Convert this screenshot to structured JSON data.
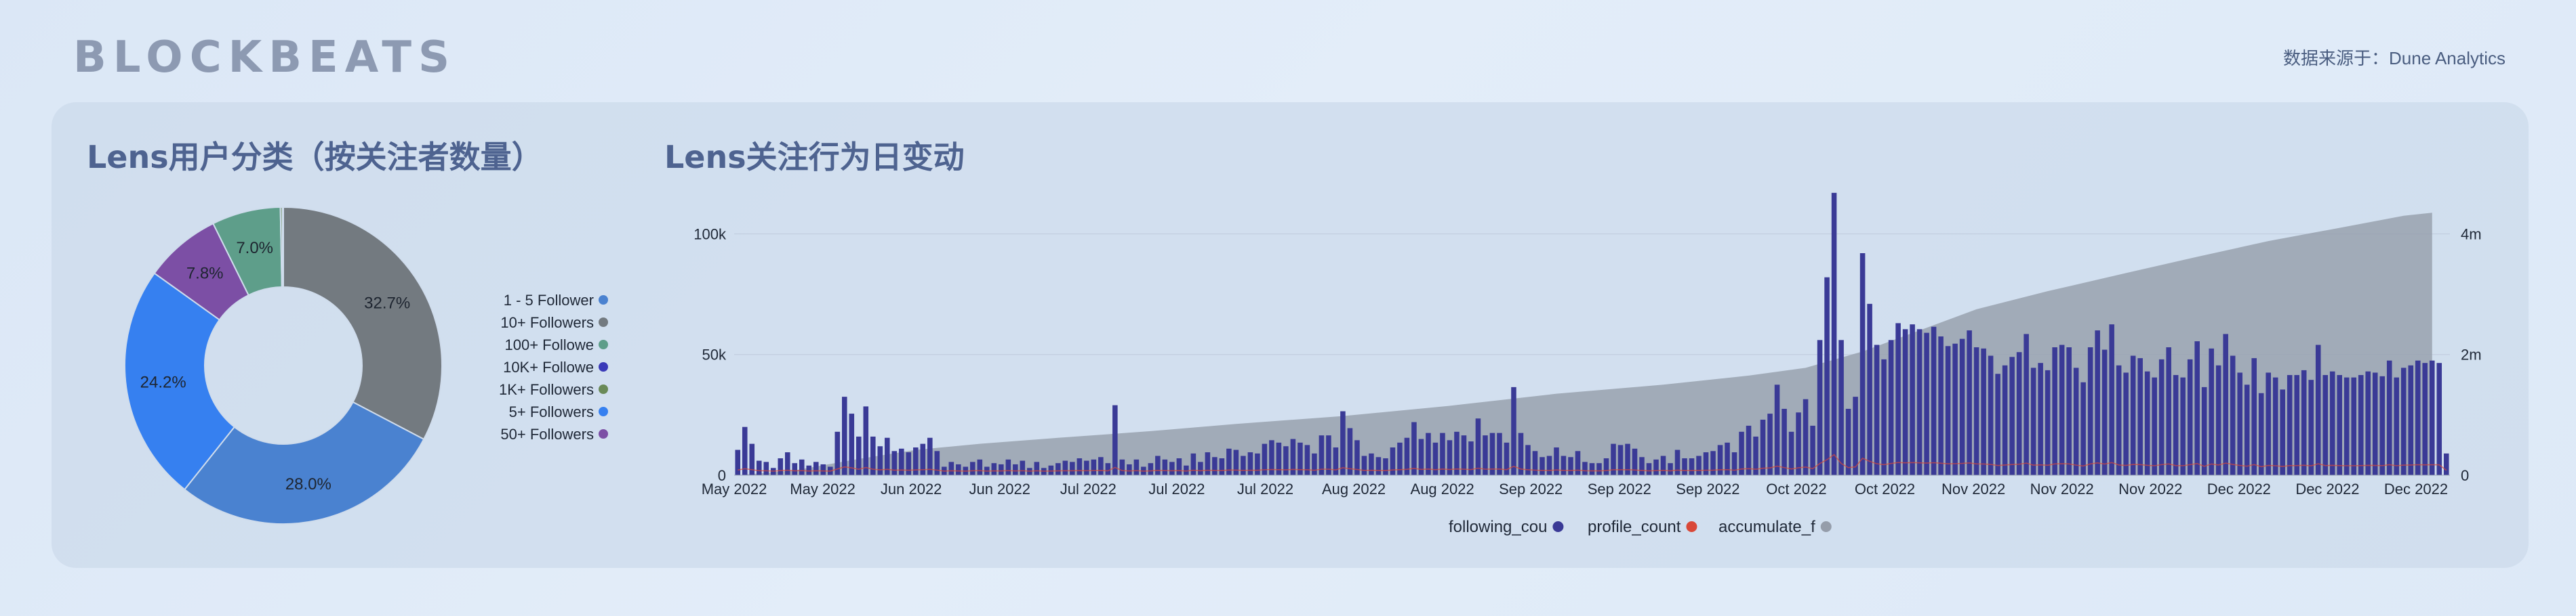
{
  "brand": {
    "logo_text": "BLOCKBEATS",
    "source_label": "数据来源于：Dune Analytics"
  },
  "chart_data": [
    {
      "type": "pie",
      "variant": "donut",
      "title": "Lens用户分类（按关注者数量）",
      "legend_position": "right",
      "slices": [
        {
          "label": "10+ Followers",
          "value": 32.7,
          "color": "#737a80"
        },
        {
          "label": "1 - 5 Follower",
          "value": 28.0,
          "color": "#4a82d0"
        },
        {
          "label": "5+ Followers",
          "value": 24.2,
          "color": "#3680f0"
        },
        {
          "label": "50+ Followers",
          "value": 7.8,
          "color": "#7c4fa5"
        },
        {
          "label": "100+ Followe",
          "value": 7.0,
          "color": "#5e9e8a"
        },
        {
          "label": "1K+ Followers",
          "value": 0.2,
          "color": "#6a8a58"
        },
        {
          "label": "10K+ Followe",
          "value": 0.1,
          "color": "#3a3ab8"
        }
      ],
      "legend_order": [
        "1 - 5 Follower",
        "10+ Followers",
        "100+ Followe",
        "10K+ Followe",
        "1K+ Followers",
        "5+ Followers",
        "50+ Followers"
      ],
      "display_labels": [
        "32.7%",
        "28.0%",
        "24.2%",
        "7.8%",
        "7.0%"
      ]
    },
    {
      "type": "bar",
      "title": "Lens关注行为日变动",
      "x_ticks": [
        "May 2022",
        "May 2022",
        "Jun 2022",
        "Jun 2022",
        "Jul 2022",
        "Jul 2022",
        "Jul 2022",
        "Aug 2022",
        "Aug 2022",
        "Sep 2022",
        "Sep 2022",
        "Sep 2022",
        "Oct 2022",
        "Oct 2022",
        "Nov 2022",
        "Nov 2022",
        "Nov 2022",
        "Dec 2022",
        "Dec 2022",
        "Dec 2022"
      ],
      "ylim_left": [
        0,
        115000
      ],
      "ylim_right": [
        0,
        4600000
      ],
      "y_ticks_left": [
        "0",
        "50k",
        "100k"
      ],
      "y_ticks_right": [
        "0",
        "2m",
        "4m"
      ],
      "legend_position": "bottom",
      "grid": true,
      "series": [
        {
          "name": "following_cou",
          "type": "bar",
          "axis": "left",
          "color": "#3a3a96",
          "values": [
            10500,
            20000,
            13000,
            6000,
            5500,
            3000,
            7000,
            9500,
            5000,
            6500,
            4000,
            5500,
            4500,
            3500,
            18000,
            32500,
            25500,
            16000,
            28500,
            16000,
            12000,
            15500,
            10000,
            11000,
            9500,
            11500,
            13000,
            15500,
            10000,
            3500,
            5500,
            4500,
            3500,
            5500,
            6500,
            3500,
            5000,
            4500,
            6500,
            4500,
            6000,
            3000,
            5500,
            3000,
            4000,
            5000,
            6000,
            5500,
            7000,
            6000,
            6500,
            7500,
            5000,
            29000,
            6500,
            4500,
            6500,
            3500,
            5000,
            8000,
            6500,
            5500,
            7000,
            4000,
            9000,
            5500,
            9500,
            7500,
            7000,
            11000,
            10500,
            8000,
            9500,
            9000,
            13000,
            14500,
            13500,
            12000,
            15000,
            13500,
            12500,
            9000,
            16500,
            16500,
            11500,
            26500,
            19500,
            14500,
            8000,
            9000,
            7500,
            7000,
            11500,
            13500,
            15500,
            22000,
            15000,
            17500,
            13500,
            17500,
            14500,
            18000,
            16500,
            14000,
            23500,
            16500,
            17500,
            17500,
            13500,
            36500,
            17500,
            12500,
            10000,
            7500,
            8000,
            11500,
            8000,
            7500,
            10000,
            5500,
            5000,
            5000,
            7000,
            13000,
            12500,
            13000,
            11000,
            7500,
            5000,
            6500,
            8000,
            5000,
            10500,
            7000,
            7000,
            8000,
            9500,
            10000,
            12500,
            13500,
            9500,
            18000,
            20500,
            16000,
            23000,
            25500,
            37500,
            27500,
            18000,
            26000,
            31500,
            20500,
            56000,
            82000,
            117000,
            56000,
            27500,
            32500,
            92000,
            71000,
            54000,
            48000,
            56000,
            63000,
            60500,
            62500,
            60500,
            59000,
            61500,
            57500,
            53500,
            54500,
            56500,
            60000,
            53000,
            52500,
            49500,
            42000,
            45500,
            49000,
            51000,
            58500,
            44500,
            46500,
            43500,
            53000,
            54000,
            53000,
            44500,
            38500,
            53000,
            60000,
            52000,
            62500,
            45500,
            42500,
            49500,
            48500,
            43000,
            40500,
            48000,
            53000,
            41500,
            40500,
            48000,
            55500,
            36500,
            52500,
            45500,
            58500,
            49500,
            42500,
            37500,
            48500,
            34000,
            42500,
            40500,
            35500,
            41500,
            41500,
            43500,
            39500,
            54000,
            41500,
            43000,
            41500,
            40500,
            40500,
            41500,
            43000,
            42500,
            41000,
            47500,
            40500,
            44500,
            45500,
            47500,
            46500,
            47500,
            46500,
            9000
          ]
        },
        {
          "name": "profile_count",
          "type": "line",
          "axis": "left",
          "color": "#d94838"
        },
        {
          "name": "accumulate_f",
          "type": "area",
          "axis": "right",
          "color": "#959daa",
          "x": [
            0,
            8,
            16,
            25,
            34,
            45,
            58,
            70,
            85,
            100,
            115,
            130,
            142,
            150,
            158,
            166,
            174,
            184,
            195,
            205,
            215,
            225,
            234,
            238
          ],
          "y": [
            0,
            80000,
            250000,
            420000,
            520000,
            620000,
            730000,
            850000,
            980000,
            1150000,
            1350000,
            1500000,
            1650000,
            1780000,
            2050000,
            2400000,
            2750000,
            3050000,
            3350000,
            3620000,
            3880000,
            4100000,
            4300000,
            4350000
          ]
        }
      ]
    }
  ]
}
